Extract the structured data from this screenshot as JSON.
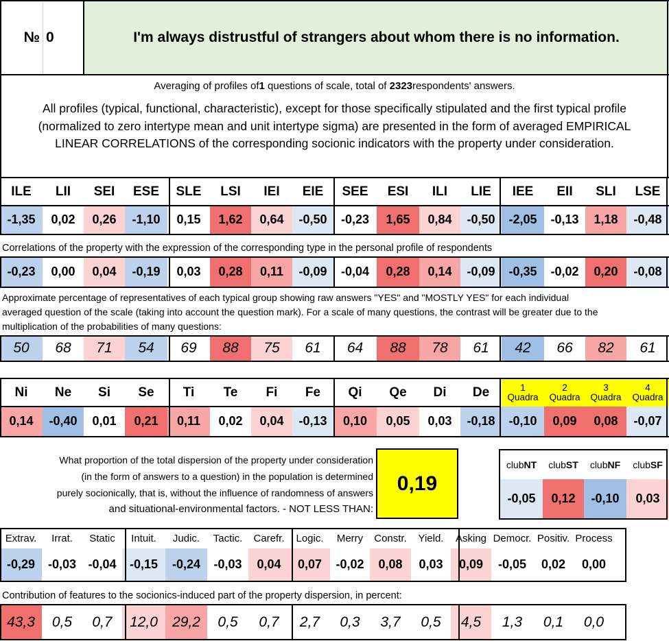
{
  "title": {
    "number_label": "№",
    "number_value": "0",
    "question": "I'm always distrustful of strangers about whom there is no information."
  },
  "summary": {
    "prefix": "Averaging of profiles of ",
    "questions": "1",
    "middle": " questions of scale, total of ",
    "respondents": "2323",
    "suffix": " respondents' answers."
  },
  "intro_lines": [
    "All profiles (typical, functional, characteristic), except for those specifically stipulated and the first typical profile",
    "(normalized to zero intertype mean and unit intertype sigma) are presented in the form of averaged EMPIRICAL",
    "LINEAR CORRELATIONS of the corresponding socionic indicators with the property under consideration."
  ],
  "types": {
    "headers": [
      "ILE",
      "LII",
      "SEI",
      "ESE",
      "SLE",
      "LSI",
      "IEI",
      "EIE",
      "SEE",
      "ESI",
      "ILI",
      "LIE",
      "IEE",
      "EII",
      "SLI",
      "LSE"
    ],
    "normalized": [
      "-1,35",
      "0,02",
      "0,26",
      "-1,10",
      "0,15",
      "1,62",
      "0,64",
      "-0,50",
      "-0,23",
      "1,65",
      "0,84",
      "-0,50",
      "-2,05",
      "-0,13",
      "1,18",
      "-0,48"
    ],
    "correlations_note": "Correlations of the property with the expression of the corresponding type in the personal profile of respondents",
    "correlations": [
      "-0,23",
      "0,00",
      "0,04",
      "-0,19",
      "0,03",
      "0,28",
      "0,11",
      "-0,09",
      "-0,04",
      "0,28",
      "0,14",
      "-0,09",
      "-0,35",
      "-0,02",
      "0,20",
      "-0,08"
    ],
    "percent_note_lines": [
      "Approximate percentage of representatives of each typical group showing raw answers \"YES\" and \"MOSTLY YES\" for each individual",
      "averaged question of the scale (taking into account the question mark). For a scale of many questions, the contrast will be greater due to the",
      "multiplication of the probabilities of many questions:"
    ],
    "percentages": [
      "50",
      "68",
      "71",
      "54",
      "69",
      "88",
      "75",
      "61",
      "64",
      "88",
      "78",
      "61",
      "42",
      "66",
      "82",
      "61"
    ]
  },
  "functions": {
    "headers": [
      "Ni",
      "Ne",
      "Si",
      "Se",
      "Ti",
      "Te",
      "Fi",
      "Fe",
      "Qi",
      "Qe",
      "Di",
      "De"
    ],
    "values": [
      "0,14",
      "-0,40",
      "0,01",
      "0,21",
      "0,11",
      "0,02",
      "0,04",
      "-0,13",
      "0,10",
      "0,05",
      "0,03",
      "-0,18"
    ]
  },
  "quadras": {
    "headers": [
      {
        "num": "1",
        "label": "Quadra"
      },
      {
        "num": "2",
        "label": "Quadra"
      },
      {
        "num": "3",
        "label": "Quadra"
      },
      {
        "num": "4",
        "label": "Quadra"
      }
    ],
    "values": [
      "-0,10",
      "0,09",
      "0,08",
      "-0,07"
    ]
  },
  "dispersion": {
    "lines": [
      "What proportion of the total dispersion of the property under consideration",
      "(in the form of answers to a question) in the population is determined",
      "purely socionically, that is, without the influence of randomness of answers",
      "and situational-environmental factors. - NOT LESS THAN:"
    ],
    "value": "0,19"
  },
  "clubs": {
    "headers": [
      {
        "prefix": "club",
        "bold": "NT"
      },
      {
        "prefix": "club",
        "bold": "ST"
      },
      {
        "prefix": "club",
        "bold": "NF"
      },
      {
        "prefix": "club",
        "bold": "SF"
      }
    ],
    "values": [
      "-0,05",
      "0,12",
      "-0,10",
      "0,03"
    ]
  },
  "features": {
    "headers": [
      "Extrav.",
      "Irrat.",
      "Static",
      "Intuit.",
      "Judic.",
      "Tactic.",
      "Carefr.",
      "Logic.",
      "Merry",
      "Constr.",
      "Yield.",
      "Asking",
      "Democr.",
      "Positiv.",
      "Process"
    ],
    "values": [
      "-0,29",
      "-0,03",
      "-0,04",
      "-0,15",
      "-0,24",
      "-0,03",
      "0,04",
      "0,07",
      "-0,02",
      "0,08",
      "0,03",
      "0,09",
      "-0,05",
      "0,02",
      "0,00"
    ],
    "contribution_note": "Contribution of features to the socionics-induced part of the property dispersion, in percent:",
    "contributions": [
      "43,3",
      "0,5",
      "0,7",
      "12,0",
      "29,2",
      "0,5",
      "0,7",
      "2,7",
      "0,3",
      "3,7",
      "0,5",
      "4,5",
      "1,3",
      "0,1",
      "0,0"
    ]
  },
  "colors": {
    "title_bg": "#e2efda",
    "yellow": "#ffff00",
    "strong_red": "#f07070",
    "mid_red": "#f7a5a5",
    "light_red": "#fbd3d3",
    "strong_blue": "#9fbfe4",
    "mid_blue": "#bcd2ec",
    "light_blue": "#dde8f5"
  }
}
